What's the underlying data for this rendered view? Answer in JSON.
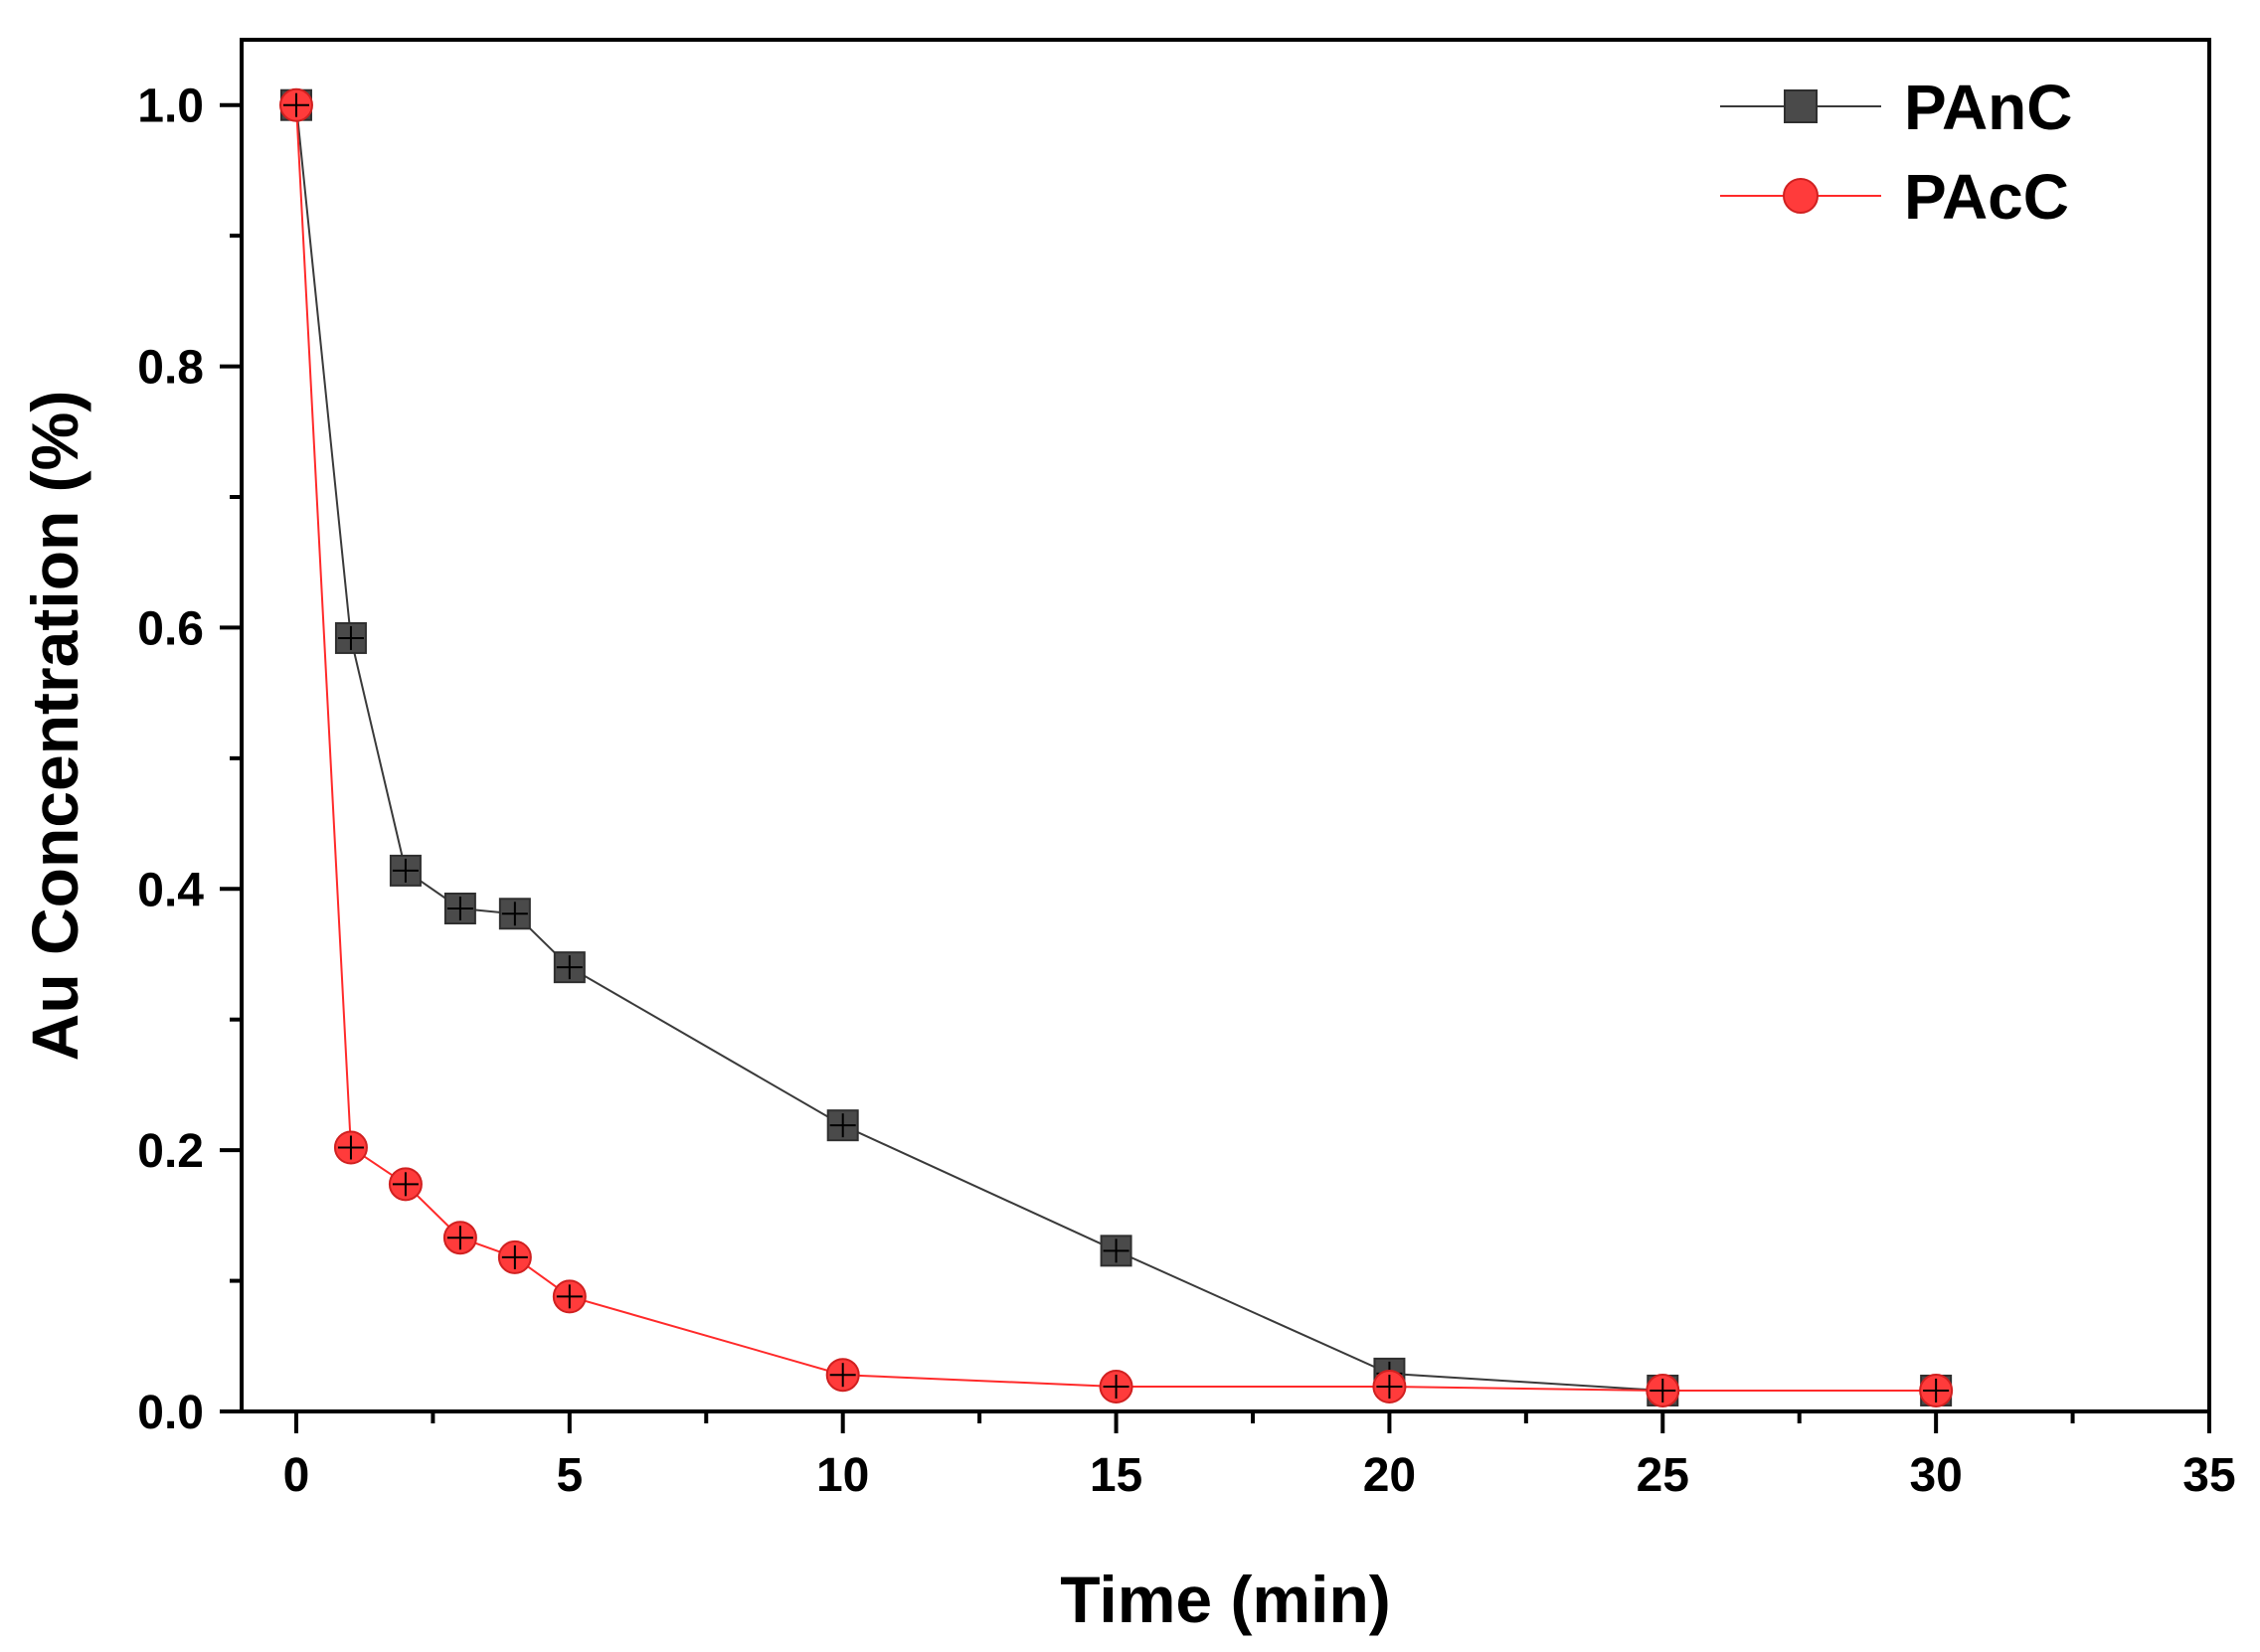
{
  "chart_data": {
    "type": "line",
    "title": "",
    "xlabel": "Time (min)",
    "ylabel": "Au Concentration (%)",
    "xlim": [
      -1,
      35
    ],
    "ylim": [
      0,
      1.05
    ],
    "x_ticks": [
      0,
      5,
      10,
      15,
      20,
      25,
      30,
      35
    ],
    "y_ticks": [
      0.0,
      0.2,
      0.4,
      0.6,
      0.8,
      1.0
    ],
    "x_tick_labels": [
      "0",
      "5",
      "10",
      "15",
      "20",
      "25",
      "30",
      "35"
    ],
    "y_tick_labels": [
      "0.0",
      "0.2",
      "0.4",
      "0.6",
      "0.8",
      "1.0"
    ],
    "grid": false,
    "legend_position": "top-right",
    "x": [
      0,
      1,
      2,
      3,
      4,
      5,
      10,
      15,
      20,
      25,
      30
    ],
    "series": [
      {
        "name": "PAnC",
        "marker": "square",
        "color": "#4a4a4a",
        "line_color": "#3a3a3a",
        "values": [
          1.0,
          0.592,
          0.414,
          0.385,
          0.381,
          0.34,
          0.219,
          0.123,
          0.029,
          0.016,
          0.016
        ]
      },
      {
        "name": "PAcC",
        "marker": "circle",
        "color": "#ff3b3b",
        "line_color": "#ff2a2a",
        "values": [
          1.0,
          0.202,
          0.174,
          0.133,
          0.118,
          0.088,
          0.028,
          0.019,
          0.019,
          0.016,
          0.016
        ]
      }
    ]
  }
}
